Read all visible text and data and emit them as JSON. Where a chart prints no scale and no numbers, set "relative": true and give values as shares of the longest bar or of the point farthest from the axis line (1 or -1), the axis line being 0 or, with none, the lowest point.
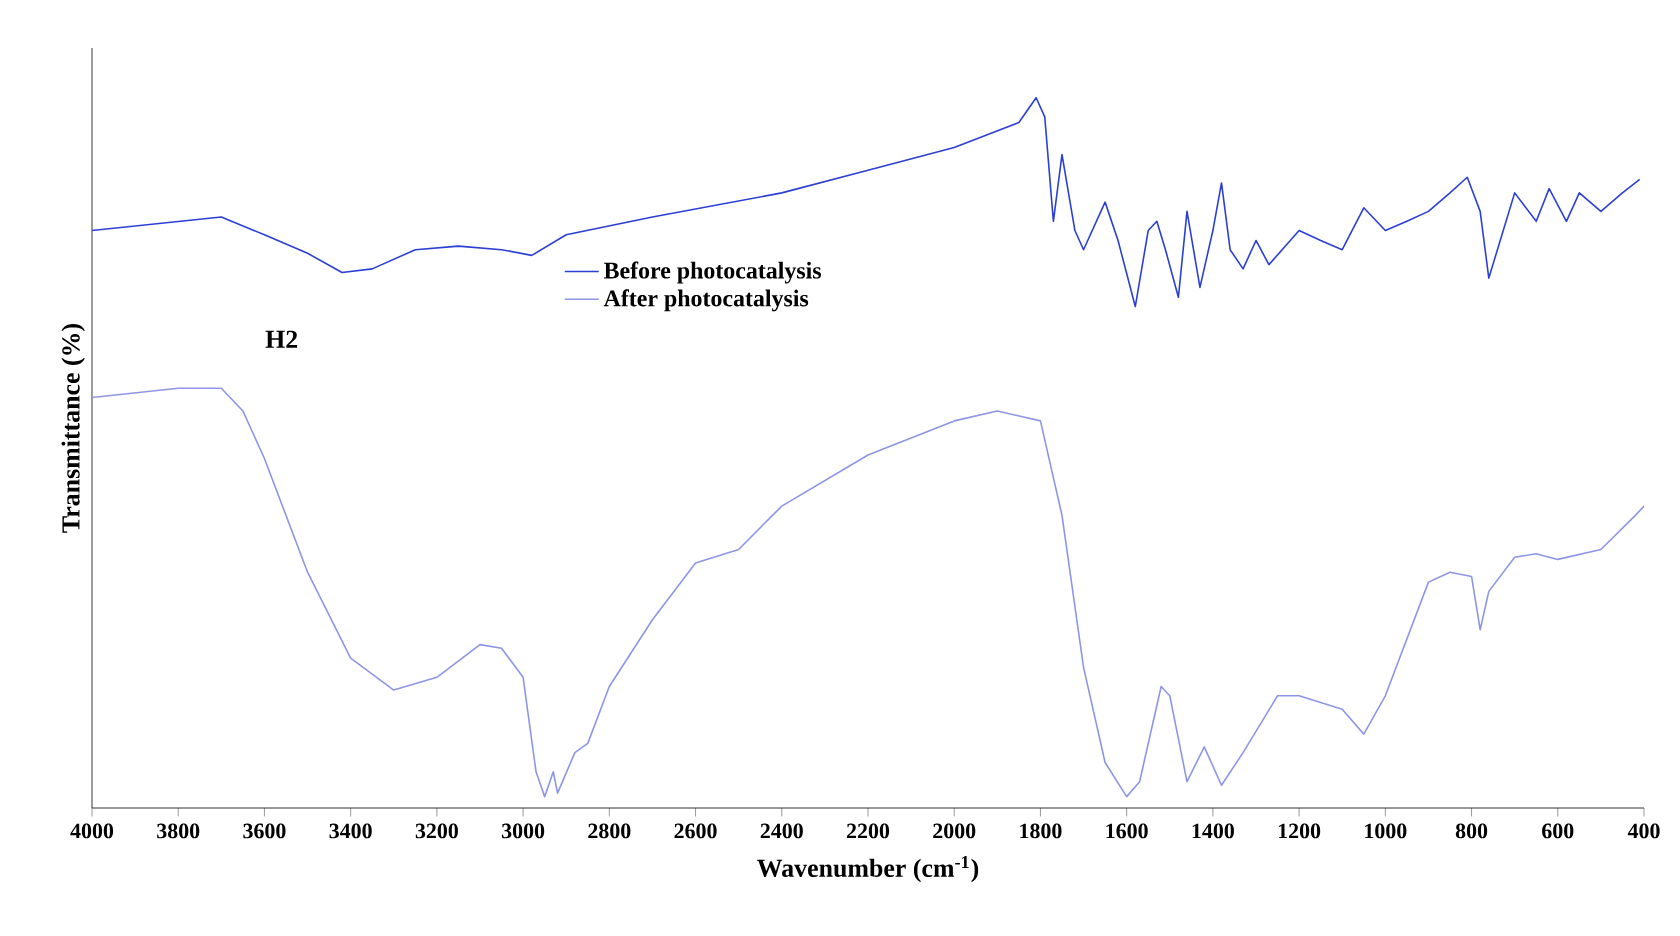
{
  "chart_data": {
    "type": "line",
    "relative": true,
    "xlabel": "Wavenumber (cm$^{-1}$)",
    "ylabel": "Transmittance (%)",
    "xlim": [
      4000,
      400
    ],
    "xticks": [
      4000,
      3800,
      3600,
      3400,
      3200,
      3000,
      2800,
      2600,
      2400,
      2200,
      2000,
      1800,
      1600,
      1400,
      1200,
      1000,
      800,
      600,
      400
    ],
    "annotations": [
      "H2"
    ],
    "legend": "top",
    "grid": false,
    "marker": "none",
    "line_style": "solid",
    "tick_labels": "x",
    "series": [
      {
        "name": "Before photocatalysis",
        "color": "#2b3fd6",
        "x": [
          4000,
          3700,
          3600,
          3500,
          3420,
          3350,
          3250,
          3150,
          3050,
          2980,
          2900,
          2700,
          2400,
          2200,
          2000,
          1850,
          1810,
          1790,
          1770,
          1750,
          1720,
          1700,
          1650,
          1620,
          1580,
          1550,
          1530,
          1510,
          1480,
          1460,
          1430,
          1400,
          1380,
          1360,
          1330,
          1300,
          1270,
          1200,
          1150,
          1100,
          1050,
          1000,
          950,
          900,
          850,
          810,
          780,
          760,
          740,
          700,
          650,
          620,
          580,
          550,
          500,
          450,
          410
        ],
        "values": [
          0.813,
          0.832,
          0.807,
          0.781,
          0.754,
          0.759,
          0.786,
          0.791,
          0.786,
          0.778,
          0.807,
          0.832,
          0.866,
          0.898,
          0.93,
          0.965,
          1,
          0.973,
          0.826,
          0.92,
          0.813,
          0.786,
          0.853,
          0.799,
          0.706,
          0.813,
          0.826,
          0.786,
          0.719,
          0.84,
          0.733,
          0.813,
          0.88,
          0.786,
          0.759,
          0.799,
          0.765,
          0.813,
          0.799,
          0.786,
          0.845,
          0.813,
          0.826,
          0.84,
          0.866,
          0.888,
          0.84,
          0.746,
          0.786,
          0.866,
          0.826,
          0.872,
          0.826,
          0.866,
          0.84,
          0.866,
          0.885
        ]
      },
      {
        "name": "After photocatalysis",
        "color": "#8d96e6",
        "x": [
          4000,
          3800,
          3700,
          3650,
          3600,
          3500,
          3400,
          3300,
          3200,
          3100,
          3050,
          3000,
          2970,
          2950,
          2930,
          2920,
          2880,
          2850,
          2800,
          2700,
          2600,
          2500,
          2400,
          2200,
          2000,
          1900,
          1800,
          1750,
          1700,
          1650,
          1600,
          1570,
          1520,
          1500,
          1460,
          1420,
          1380,
          1330,
          1250,
          1200,
          1100,
          1050,
          1000,
          900,
          850,
          800,
          780,
          760,
          700,
          650,
          600,
          500,
          420,
          400
        ],
        "values": [
          0.578,
          0.591,
          0.591,
          0.559,
          0.492,
          0.332,
          0.211,
          0.166,
          0.184,
          0.23,
          0.225,
          0.184,
          0.051,
          0.016,
          0.051,
          0.021,
          0.078,
          0.091,
          0.171,
          0.265,
          0.345,
          0.364,
          0.425,
          0.497,
          0.545,
          0.559,
          0.545,
          0.412,
          0.198,
          0.064,
          0.016,
          0.037,
          0.171,
          0.158,
          0.037,
          0.086,
          0.032,
          0.078,
          0.158,
          0.158,
          0.139,
          0.104,
          0.158,
          0.318,
          0.332,
          0.326,
          0.251,
          0.305,
          0.353,
          0.358,
          0.35,
          0.364,
          0.412,
          0.425
        ]
      }
    ]
  }
}
